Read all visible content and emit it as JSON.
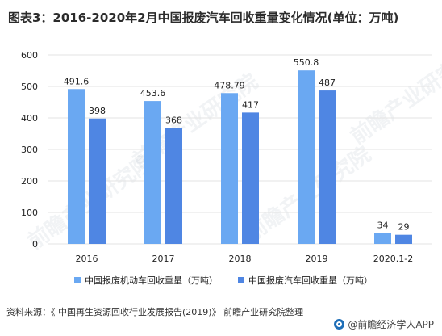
{
  "title": "图表3：2016-2020年2月中国报废汽车回收重量变化情况(单位：万吨)",
  "source": "资料来源：《 中国再生资源回收行业发展报告(2019)》 前瞻产业研究院整理",
  "brand": "@前瞻经济学人APP",
  "watermark": "前瞻产业研究院",
  "colors": {
    "series1": "#6aa8f2",
    "series2": "#4f86e3",
    "grid": "#e3e3e3",
    "text": "#222222"
  },
  "chart_data": {
    "type": "bar",
    "categories": [
      "2016",
      "2017",
      "2018",
      "2019",
      "2020.1-2"
    ],
    "series": [
      {
        "name": "中国报废机动车回收重量（万吨）",
        "values": [
          491.6,
          453.6,
          478.79,
          550.8,
          34
        ],
        "labels": [
          "491.6",
          "453.6",
          "478.79",
          "550.8",
          "34"
        ]
      },
      {
        "name": "中国报废汽车回收重量（万吨）",
        "values": [
          398,
          368,
          417,
          487,
          29
        ],
        "labels": [
          "398",
          "368",
          "417",
          "487",
          "29"
        ]
      }
    ],
    "ylim": [
      0,
      600
    ],
    "yticks": [
      0,
      100,
      200,
      300,
      400,
      500,
      600
    ],
    "grid": true,
    "legend": "bottom"
  }
}
